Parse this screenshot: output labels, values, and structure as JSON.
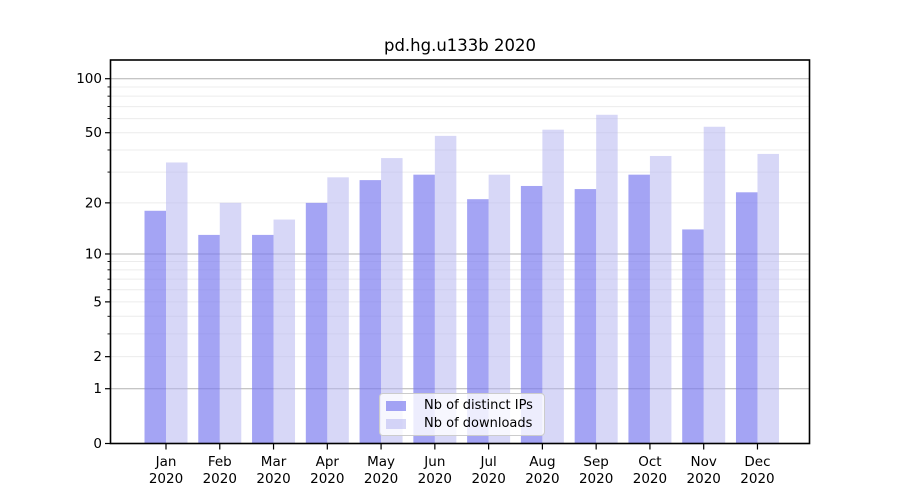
{
  "title": "pd.hg.u133b 2020",
  "chart_data": {
    "type": "bar",
    "title": "pd.hg.u133b 2020",
    "categories": [
      "Jan 2020",
      "Feb 2020",
      "Mar 2020",
      "Apr 2020",
      "May 2020",
      "Jun 2020",
      "Jul 2020",
      "Aug 2020",
      "Sep 2020",
      "Oct 2020",
      "Nov 2020",
      "Dec 2020"
    ],
    "series": [
      {
        "name": "Nb of distinct IPs",
        "values": [
          18,
          13,
          13,
          20,
          27,
          29,
          21,
          25,
          24,
          29,
          14,
          23
        ],
        "color": "#7e7ef0",
        "alpha": 0.7
      },
      {
        "name": "Nb of downloads",
        "values": [
          34,
          20,
          16,
          28,
          36,
          48,
          29,
          52,
          63,
          37,
          54,
          38
        ],
        "color": "#b6b6f0",
        "alpha": 0.55
      }
    ],
    "xlabel": "",
    "ylabel": "",
    "yscale": "log1p",
    "yticks": [
      0,
      1,
      2,
      5,
      10,
      20,
      50,
      100
    ],
    "ylim": [
      0,
      127
    ],
    "grid": true,
    "legend_position": "lower center",
    "colors": {
      "major_gridline": "#b2b2b2",
      "minor_gridline": "#ececec",
      "spine": "#000000",
      "bar_ips_rendered": "#a5a5f5",
      "bar_downloads_rendered": "#d7d7f7"
    }
  }
}
